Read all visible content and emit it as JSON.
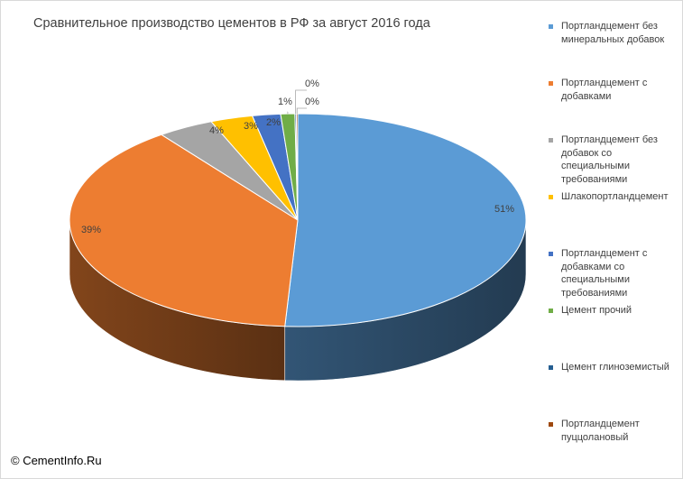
{
  "chart_data": {
    "type": "pie",
    "title": "Сравнительное производство цементов в РФ за август 2016 года",
    "legend_position": "right",
    "series": [
      {
        "name": "Портландцемент без минеральных добавок",
        "value": 51,
        "label": "51%",
        "color": "#5b9bd5"
      },
      {
        "name": "Портландцемент с добавками",
        "value": 39,
        "label": "39%",
        "color": "#ed7d31"
      },
      {
        "name": "Портландцемент без добавок со специальными требованиями",
        "value": 4,
        "label": "4%",
        "color": "#a5a5a5"
      },
      {
        "name": "Шлакопортландцемент",
        "value": 3,
        "label": "3%",
        "color": "#ffc000"
      },
      {
        "name": "Портландцемент с добавками со специальными требованиями",
        "value": 2,
        "label": "2%",
        "color": "#4472c4"
      },
      {
        "name": "Цемент прочий",
        "value": 1,
        "label": "1%",
        "color": "#70ad47"
      },
      {
        "name": "Цемент глиноземистый",
        "value": 0.1,
        "label": "0%",
        "color": "#255e91"
      },
      {
        "name": "Портландцемент пуццолановый",
        "value": 0.1,
        "label": "0%",
        "color": "#9e480e"
      }
    ]
  },
  "copyright": "© CementInfo.Ru"
}
